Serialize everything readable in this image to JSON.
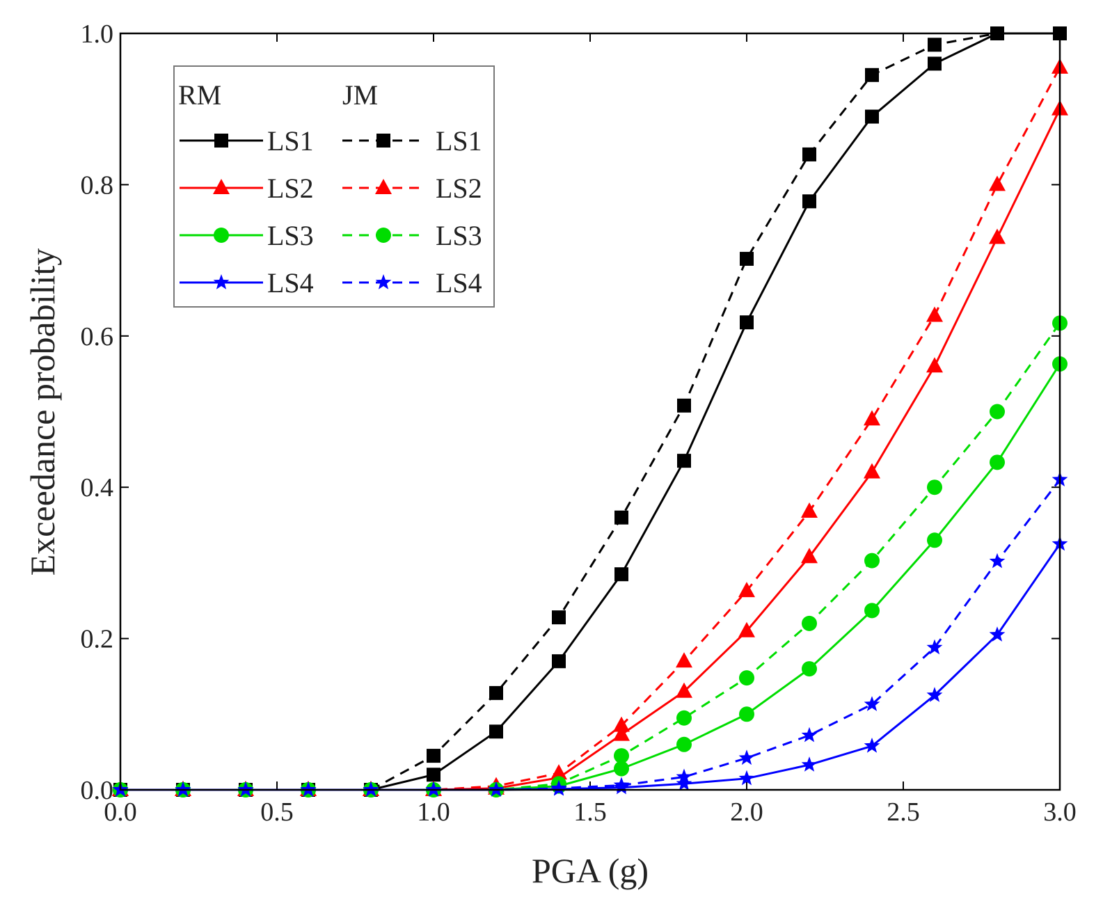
{
  "chart_data": {
    "type": "line",
    "title": "",
    "xlabel": "PGA (g)",
    "ylabel": "Exceedance probability",
    "xlim": [
      0,
      3
    ],
    "ylim": [
      0,
      1
    ],
    "xticks": [
      0,
      0.5,
      1,
      1.5,
      2,
      2.5,
      3
    ],
    "xtick_labels": [
      "0.0",
      "0.5",
      "1.0",
      "1.5",
      "2.0",
      "2.5",
      "3.0"
    ],
    "yticks": [
      0,
      0.2,
      0.4,
      0.6,
      0.8,
      1
    ],
    "ytick_labels": [
      "0.0",
      "0.2",
      "0.4",
      "0.6",
      "0.8",
      "1.0"
    ],
    "legend": {
      "position": "top-left",
      "group_headers": [
        "RM",
        "JM"
      ],
      "labels": [
        "LS1",
        "LS2",
        "LS3",
        "LS4"
      ]
    },
    "x": [
      0,
      0.2,
      0.4,
      0.6,
      0.8,
      1.0,
      1.2,
      1.4,
      1.6,
      1.8,
      2.0,
      2.2,
      2.4,
      2.6,
      2.8,
      3.0
    ],
    "series": [
      {
        "name": "RM LS1",
        "group": "RM",
        "label": "LS1",
        "color": "#000000",
        "dash": "solid",
        "marker": "square",
        "values": [
          0,
          0,
          0,
          0,
          0,
          0.02,
          0.077,
          0.17,
          0.285,
          0.435,
          0.618,
          0.778,
          0.89,
          0.96,
          1.0,
          1.0
        ]
      },
      {
        "name": "JM LS1",
        "group": "JM",
        "label": "LS1",
        "color": "#000000",
        "dash": "dashed",
        "marker": "square",
        "values": [
          0,
          0,
          0,
          0,
          0,
          0.045,
          0.128,
          0.228,
          0.36,
          0.508,
          0.702,
          0.84,
          0.945,
          0.985,
          1.0,
          1.0
        ]
      },
      {
        "name": "RM LS2",
        "group": "RM",
        "label": "LS2",
        "color": "#ff0000",
        "dash": "solid",
        "marker": "triangle",
        "values": [
          0,
          0,
          0,
          0,
          0,
          0,
          0.002,
          0.016,
          0.073,
          0.13,
          0.21,
          0.308,
          0.42,
          0.56,
          0.73,
          0.9
        ]
      },
      {
        "name": "JM LS2",
        "group": "JM",
        "label": "LS2",
        "color": "#ff0000",
        "dash": "dashed",
        "marker": "triangle",
        "values": [
          0,
          0,
          0,
          0,
          0,
          0,
          0.005,
          0.022,
          0.085,
          0.17,
          0.263,
          0.368,
          0.49,
          0.627,
          0.8,
          0.955
        ]
      },
      {
        "name": "RM LS3",
        "group": "RM",
        "label": "LS3",
        "color": "#00dd00",
        "dash": "solid",
        "marker": "circle",
        "values": [
          0,
          0,
          0,
          0,
          0,
          0,
          0,
          0.005,
          0.028,
          0.06,
          0.1,
          0.16,
          0.237,
          0.33,
          0.433,
          0.563
        ]
      },
      {
        "name": "JM LS3",
        "group": "JM",
        "label": "LS3",
        "color": "#00dd00",
        "dash": "dashed",
        "marker": "circle",
        "values": [
          0,
          0,
          0,
          0,
          0,
          0,
          0,
          0.008,
          0.045,
          0.095,
          0.148,
          0.22,
          0.303,
          0.4,
          0.5,
          0.617
        ]
      },
      {
        "name": "RM LS4",
        "group": "RM",
        "label": "LS4",
        "color": "#0000ff",
        "dash": "solid",
        "marker": "star",
        "values": [
          0,
          0,
          0,
          0,
          0,
          0,
          0,
          0.001,
          0.003,
          0.008,
          0.015,
          0.033,
          0.058,
          0.125,
          0.205,
          0.325
        ]
      },
      {
        "name": "JM LS4",
        "group": "JM",
        "label": "LS4",
        "color": "#0000ff",
        "dash": "dashed",
        "marker": "star",
        "values": [
          0,
          0,
          0,
          0,
          0,
          0,
          0,
          0.002,
          0.006,
          0.017,
          0.042,
          0.072,
          0.113,
          0.188,
          0.302,
          0.41
        ]
      }
    ]
  }
}
